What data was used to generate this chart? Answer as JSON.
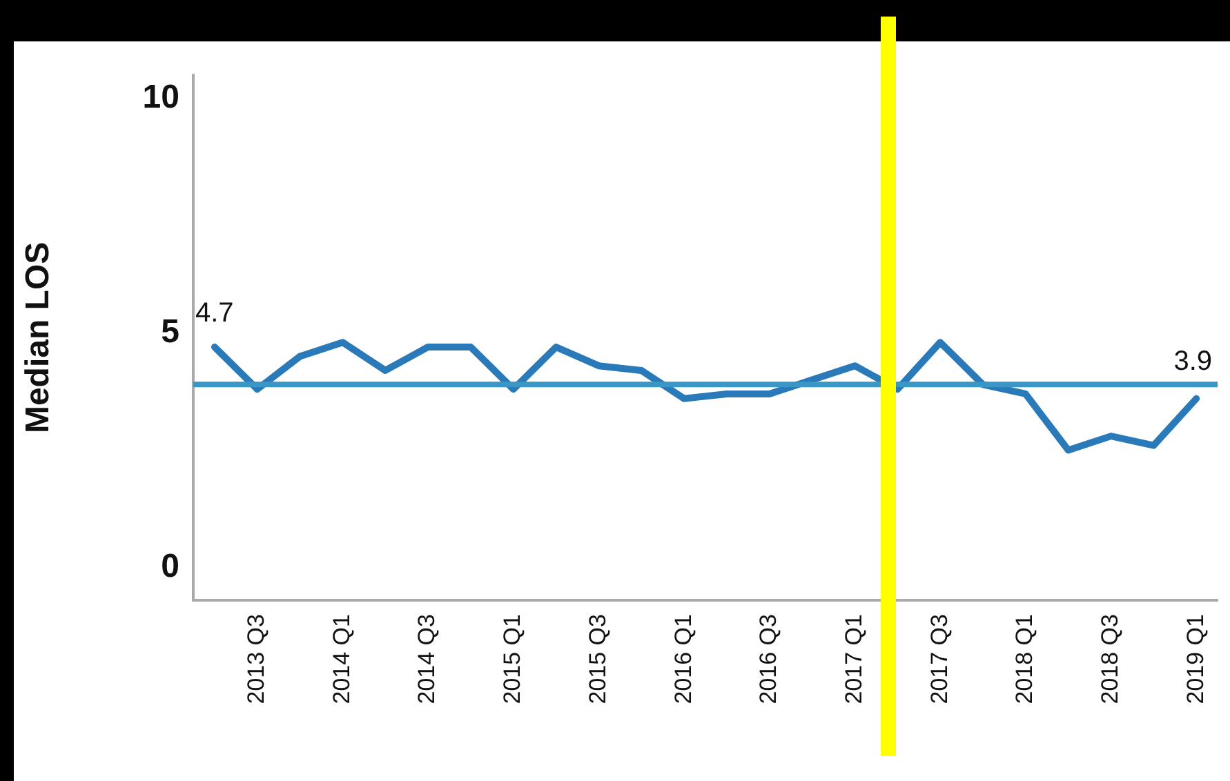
{
  "chart_data": {
    "type": "line",
    "ylabel": "Median LOS",
    "categories": [
      null,
      "2013 Q3",
      null,
      "2014 Q1",
      null,
      "2014 Q3",
      null,
      "2015 Q1",
      null,
      "2015 Q3",
      null,
      "2016 Q1",
      null,
      "2016 Q3",
      null,
      "2017 Q1",
      null,
      "2017 Q3",
      null,
      "2018 Q1",
      null,
      "2018 Q3",
      null,
      "2019 Q1"
    ],
    "series": [
      {
        "color": "#2a7ab9",
        "values": [
          4.7,
          3.8,
          4.5,
          4.8,
          4.2,
          4.7,
          4.7,
          3.8,
          4.7,
          4.3,
          4.2,
          3.6,
          3.7,
          3.7,
          4.0,
          4.3,
          3.8,
          4.8,
          3.9,
          3.7,
          2.5,
          2.8,
          2.6,
          3.6
        ],
        "value_labels": [
          "4.7",
          null,
          null,
          null,
          null,
          null,
          null,
          null,
          null,
          null,
          null,
          null,
          null,
          null,
          null,
          null,
          null,
          null,
          null,
          null,
          null,
          null,
          null,
          null
        ]
      }
    ],
    "ylim": [
      -0.7,
      10.5
    ],
    "yticks": [
      0,
      5,
      10
    ],
    "grid": false,
    "legend": false,
    "marker": "none",
    "line_style": "solid",
    "ref_lines": [
      {
        "axis": "y",
        "value": 3.9,
        "label": "3.9",
        "color": "#3a96c4"
      }
    ]
  }
}
